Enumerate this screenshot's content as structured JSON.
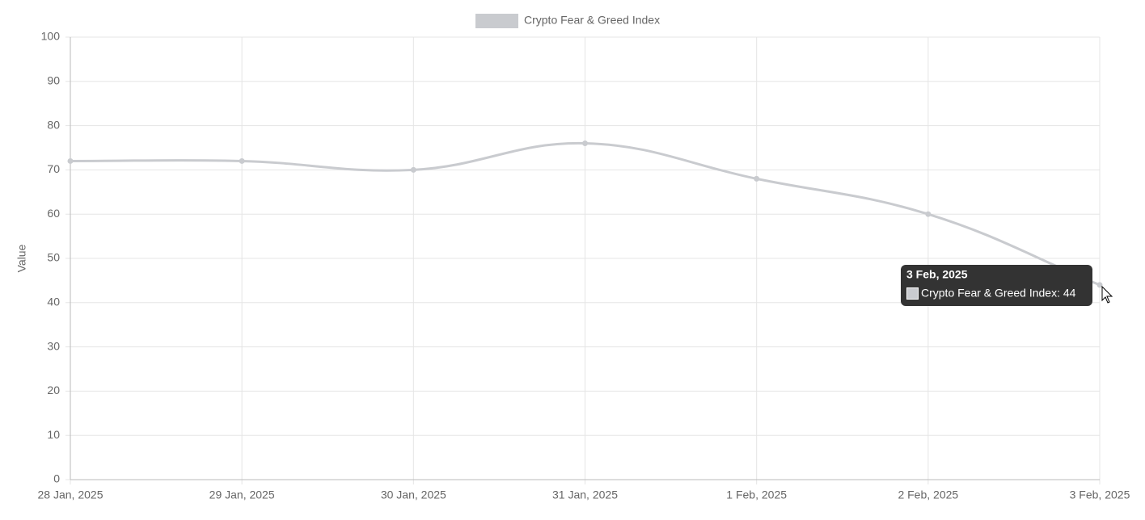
{
  "chart_data": {
    "type": "line",
    "categories": [
      "28 Jan, 2025",
      "29 Jan, 2025",
      "30 Jan, 2025",
      "31 Jan, 2025",
      "1 Feb, 2025",
      "2 Feb, 2025",
      "3 Feb, 2025"
    ],
    "series": [
      {
        "name": "Crypto Fear & Greed Index",
        "color": "#c9cbcf",
        "values": [
          72,
          72,
          70,
          76,
          68,
          60,
          44
        ]
      }
    ],
    "y_label": "Value",
    "ylim": [
      0,
      100
    ],
    "yticks": [
      0,
      10,
      20,
      30,
      40,
      50,
      60,
      70,
      80,
      90,
      100
    ],
    "grid": true,
    "tooltip": {
      "title": "3 Feb, 2025",
      "label": "Crypto Fear & Greed Index: 44"
    }
  }
}
